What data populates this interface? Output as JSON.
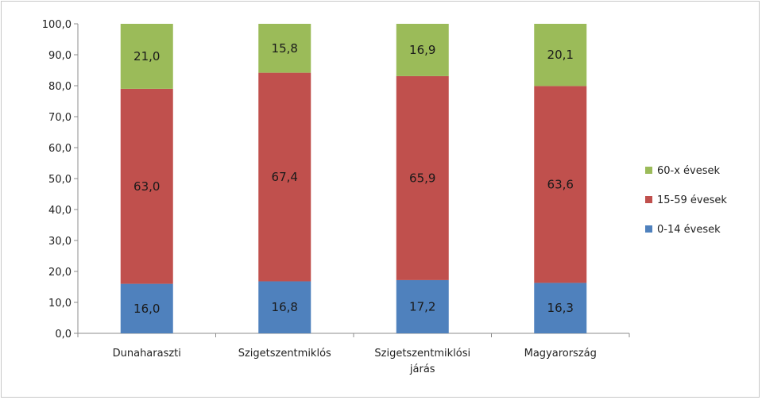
{
  "chart_data": {
    "type": "bar",
    "stacked": true,
    "categories": [
      [
        "Dunaharaszti"
      ],
      [
        "Szigetszentmiklós"
      ],
      [
        "Szigetszentmiklósi",
        "járás"
      ],
      [
        "Magyarország"
      ]
    ],
    "series": [
      {
        "name": "0-14 évesek",
        "values": [
          16.0,
          16.8,
          17.2,
          16.3
        ],
        "labels": [
          "16,0",
          "16,8",
          "17,2",
          "16,3"
        ],
        "color": "#4f81bd"
      },
      {
        "name": "15-59 évesek",
        "values": [
          63.0,
          67.4,
          65.9,
          63.6
        ],
        "labels": [
          "63,0",
          "67,4",
          "65,9",
          "63,6"
        ],
        "color": "#c0504d"
      },
      {
        "name": "60-x évesek",
        "values": [
          21.0,
          15.8,
          16.9,
          20.1
        ],
        "labels": [
          "21,0",
          "15,8",
          "16,9",
          "20,1"
        ],
        "color": "#9bbb59"
      }
    ],
    "yticks": [
      "0,0",
      "10,0",
      "20,0",
      "30,0",
      "40,0",
      "50,0",
      "60,0",
      "70,0",
      "80,0",
      "90,0",
      "100,0"
    ],
    "ylim": [
      0,
      100
    ],
    "grid": false,
    "legend": {
      "placement": "right",
      "order": [
        "60-x évesek",
        "15-59 évesek",
        "0-14 évesek"
      ]
    },
    "title": "",
    "xlabel": "",
    "ylabel": ""
  }
}
